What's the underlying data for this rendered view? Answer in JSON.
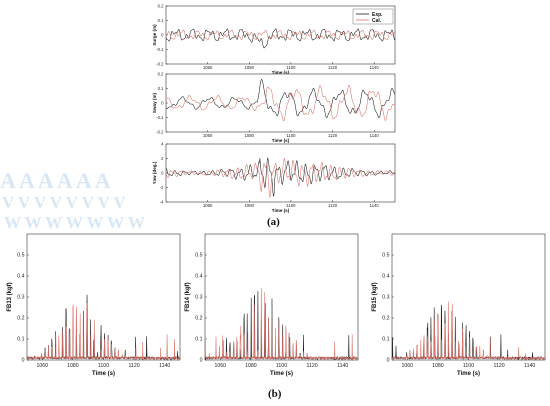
{
  "sub_labels": {
    "a": "(a)",
    "b": "(b)"
  },
  "ghost_text": [
    "A A A A A A",
    "V V V V V V V V",
    "W W W W W W W"
  ],
  "chart_data": [
    {
      "id": "surge",
      "type": "line",
      "title": "",
      "xlabel": "Time (s)",
      "ylabel": "Surge (m)",
      "xlim": [
        1040,
        1150
      ],
      "ylim": [
        -0.2,
        0.2
      ],
      "xticks": [
        1060,
        1080,
        1100,
        1120,
        1140
      ],
      "yticks": [
        -0.2,
        -0.1,
        0,
        0.1,
        0.2
      ],
      "legend": {
        "position": "top-right",
        "entries": [
          "Exp.",
          "Cal."
        ]
      },
      "series": [
        {
          "name": "Exp.",
          "color": "#1a1a1a",
          "amp": 0.045,
          "seed": 3,
          "shape": "surge"
        },
        {
          "name": "Cal.",
          "color": "#d9736a",
          "amp": 0.035,
          "seed": 11,
          "shape": "surge"
        }
      ]
    },
    {
      "id": "sway",
      "type": "line",
      "title": "",
      "xlabel": "Time (s)",
      "ylabel": "Sway (m)",
      "xlim": [
        1040,
        1150
      ],
      "ylim": [
        -0.2,
        0.2
      ],
      "xticks": [
        1060,
        1080,
        1100,
        1120,
        1140
      ],
      "yticks": [
        -0.2,
        -0.1,
        0,
        0.1,
        0.2
      ],
      "series": [
        {
          "name": "Exp.",
          "color": "#1a1a1a",
          "amp": 0.05,
          "seed": 5,
          "shape": "sway"
        },
        {
          "name": "Cal.",
          "color": "#d9736a",
          "amp": 0.06,
          "seed": 13,
          "shape": "sway"
        }
      ]
    },
    {
      "id": "yaw",
      "type": "line",
      "title": "",
      "xlabel": "Time (s)",
      "ylabel": "Yaw (deg.)",
      "xlim": [
        1040,
        1150
      ],
      "ylim": [
        -4,
        4
      ],
      "xticks": [
        1060,
        1080,
        1100,
        1120,
        1140
      ],
      "yticks": [
        -4,
        -2,
        0,
        2,
        4
      ],
      "series": [
        {
          "name": "Exp.",
          "color": "#1a1a1a",
          "amp": 1.2,
          "seed": 7,
          "shape": "yaw"
        },
        {
          "name": "Cal.",
          "color": "#d9736a",
          "amp": 1.3,
          "seed": 17,
          "shape": "yaw"
        }
      ]
    },
    {
      "id": "fb13",
      "type": "line",
      "title": "",
      "xlabel": "Time (s)",
      "ylabel": "FB13 (kgf)",
      "xlim": [
        1050,
        1150
      ],
      "ylim": [
        0,
        0.6
      ],
      "xticks": [
        1060,
        1080,
        1100,
        1120,
        1140
      ],
      "yticks": [
        0,
        0.1,
        0.2,
        0.3,
        0.4,
        0.5
      ],
      "series": [
        {
          "name": "Exp.",
          "color": "#1a1a1a",
          "peak": 0.33,
          "center": 1085,
          "seed": 21
        },
        {
          "name": "Cal.",
          "color": "#d9736a",
          "peak": 0.3,
          "center": 1086,
          "seed": 29
        }
      ]
    },
    {
      "id": "fb14",
      "type": "line",
      "title": "",
      "xlabel": "Time (s)",
      "ylabel": "FB14 (kgf)",
      "xlim": [
        1050,
        1150
      ],
      "ylim": [
        0,
        0.6
      ],
      "xticks": [
        1060,
        1080,
        1100,
        1120,
        1140
      ],
      "yticks": [
        0,
        0.1,
        0.2,
        0.3,
        0.4,
        0.5
      ],
      "series": [
        {
          "name": "Exp.",
          "color": "#1a1a1a",
          "peak": 0.38,
          "center": 1088,
          "seed": 23
        },
        {
          "name": "Cal.",
          "color": "#d9736a",
          "peak": 0.36,
          "center": 1089,
          "seed": 31
        }
      ]
    },
    {
      "id": "fb15",
      "type": "line",
      "title": "",
      "xlabel": "Time (s)",
      "ylabel": "FB15 (kgf)",
      "xlim": [
        1050,
        1150
      ],
      "ylim": [
        0,
        0.6
      ],
      "xticks": [
        1060,
        1080,
        1100,
        1120,
        1140
      ],
      "yticks": [
        0,
        0.1,
        0.2,
        0.3,
        0.4,
        0.5
      ],
      "series": [
        {
          "name": "Exp.",
          "color": "#1a1a1a",
          "peak": 0.3,
          "center": 1085,
          "seed": 25
        },
        {
          "name": "Cal.",
          "color": "#d9736a",
          "peak": 0.28,
          "center": 1086,
          "seed": 33
        }
      ]
    }
  ]
}
